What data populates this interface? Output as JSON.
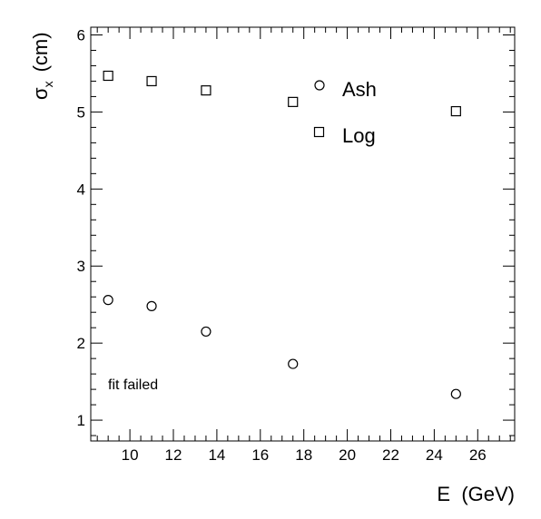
{
  "chart_data": {
    "type": "scatter",
    "title": "",
    "xlabel": "E  (GeV)",
    "ylabel_symbol": "σ",
    "ylabel_subscript": "x",
    "ylabel_unit": "(cm)",
    "xlim": [
      8.2,
      27.7
    ],
    "ylim": [
      0.73,
      6.1
    ],
    "xticks": [
      10,
      12,
      14,
      16,
      18,
      20,
      22,
      24,
      26
    ],
    "yticks": [
      1,
      2,
      3,
      4,
      5,
      6
    ],
    "grid": false,
    "legend_position": "top-center",
    "annotation": "fit failed",
    "series": [
      {
        "name": "Ash",
        "marker": "circle",
        "x": [
          9,
          11,
          13.5,
          17.5,
          25
        ],
        "y": [
          2.56,
          2.48,
          2.15,
          1.73,
          1.34
        ]
      },
      {
        "name": "Log",
        "marker": "square",
        "x": [
          9,
          11,
          13.5,
          17.5,
          25
        ],
        "y": [
          5.47,
          5.4,
          5.28,
          5.13,
          5.01
        ]
      }
    ]
  }
}
